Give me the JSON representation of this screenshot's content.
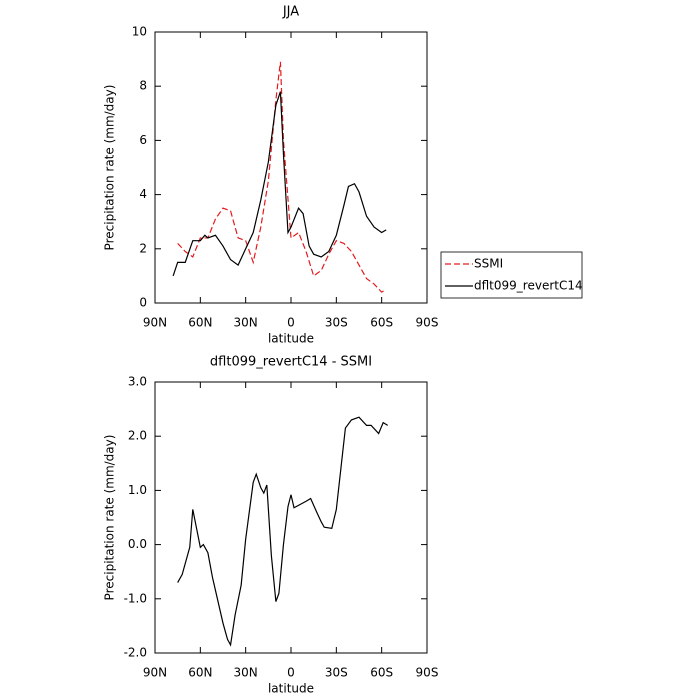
{
  "chart_data": [
    {
      "type": "line",
      "title": "JJA",
      "xlabel": "latitude",
      "ylabel": "Precipitation rate (mm/day)",
      "xlim": [
        90,
        -90
      ],
      "xticks": [
        {
          "value": 90,
          "label": "90N"
        },
        {
          "value": 60,
          "label": "60N"
        },
        {
          "value": 30,
          "label": "30N"
        },
        0,
        {
          "value": -30,
          "label": "30S"
        },
        {
          "value": -60,
          "label": "60S"
        },
        {
          "value": -90,
          "label": "90S"
        }
      ],
      "ylim": [
        0,
        10
      ],
      "yticks": [
        0,
        2,
        4,
        6,
        8,
        10
      ],
      "legend": "right",
      "series": [
        {
          "name": "SSMI",
          "color": "#e41a1c",
          "dash": true,
          "x": [
            75,
            70,
            65,
            60,
            55,
            50,
            45,
            40,
            35,
            30,
            25,
            20,
            15,
            10,
            7,
            5,
            0,
            -5,
            -10,
            -15,
            -20,
            -25,
            -30,
            -35,
            -40,
            -45,
            -50,
            -55,
            -60,
            -63
          ],
          "values": [
            2.2,
            1.9,
            1.7,
            2.4,
            2.4,
            3.1,
            3.5,
            3.4,
            2.4,
            2.3,
            1.5,
            2.8,
            4.5,
            7.5,
            8.9,
            6.0,
            2.4,
            2.6,
            1.9,
            1.0,
            1.2,
            1.8,
            2.3,
            2.2,
            1.9,
            1.4,
            0.9,
            0.7,
            0.4,
            0.5
          ]
        },
        {
          "name": "dflt099_revertC14",
          "color": "#000000",
          "dash": false,
          "x": [
            78,
            75,
            70,
            65,
            60,
            57,
            55,
            50,
            45,
            40,
            35,
            30,
            25,
            20,
            15,
            10,
            7,
            5,
            2,
            0,
            -5,
            -8,
            -12,
            -15,
            -20,
            -25,
            -30,
            -35,
            -38,
            -42,
            -45,
            -50,
            -55,
            -60,
            -63
          ],
          "values": [
            1.0,
            1.5,
            1.5,
            2.3,
            2.3,
            2.5,
            2.4,
            2.5,
            2.1,
            1.6,
            1.4,
            2.0,
            2.6,
            3.8,
            5.2,
            7.3,
            7.8,
            5.5,
            2.6,
            2.8,
            3.5,
            3.3,
            2.1,
            1.8,
            1.7,
            1.9,
            2.5,
            3.6,
            4.3,
            4.4,
            4.1,
            3.2,
            2.8,
            2.6,
            2.7
          ]
        }
      ]
    },
    {
      "type": "line",
      "title": "dflt099_revertC14 - SSMI",
      "xlabel": "latitude",
      "ylabel": "Precipitation rate (mm/day)",
      "xlim": [
        90,
        -90
      ],
      "xticks": [
        {
          "value": 90,
          "label": "90N"
        },
        {
          "value": 60,
          "label": "60N"
        },
        {
          "value": 30,
          "label": "30N"
        },
        0,
        {
          "value": -30,
          "label": "30S"
        },
        {
          "value": -60,
          "label": "60S"
        },
        {
          "value": -90,
          "label": "90S"
        }
      ],
      "ylim": [
        -2,
        3
      ],
      "yticks": [
        {
          "value": -2,
          "label": "-2.0"
        },
        {
          "value": -1,
          "label": "-1.0"
        },
        {
          "value": 0,
          "label": "0.0"
        },
        {
          "value": 1,
          "label": "1.0"
        },
        {
          "value": 2,
          "label": "2.0"
        },
        {
          "value": 3,
          "label": "3.0"
        }
      ],
      "series": [
        {
          "color": "#000000",
          "dash": false,
          "x": [
            75,
            72,
            67,
            65,
            60,
            58,
            55,
            52,
            45,
            42,
            40,
            37,
            33,
            30,
            25,
            23,
            20,
            18,
            16,
            13,
            10,
            8,
            5,
            2,
            0,
            -2,
            -10,
            -13,
            -17,
            -20,
            -22,
            -27,
            -30,
            -33,
            -36,
            -40,
            -45,
            -50,
            -53,
            -58,
            -61,
            -64
          ],
          "values": [
            -0.7,
            -0.55,
            -0.05,
            0.65,
            -0.05,
            0.0,
            -0.15,
            -0.6,
            -1.45,
            -1.75,
            -1.85,
            -1.3,
            -0.75,
            0.1,
            1.15,
            1.3,
            1.05,
            0.95,
            1.1,
            -0.2,
            -1.05,
            -0.9,
            0.0,
            0.7,
            0.92,
            0.68,
            0.8,
            0.85,
            0.6,
            0.42,
            0.32,
            0.3,
            0.65,
            1.4,
            2.15,
            2.3,
            2.35,
            2.2,
            2.2,
            2.05,
            2.25,
            2.2
          ]
        }
      ]
    }
  ]
}
